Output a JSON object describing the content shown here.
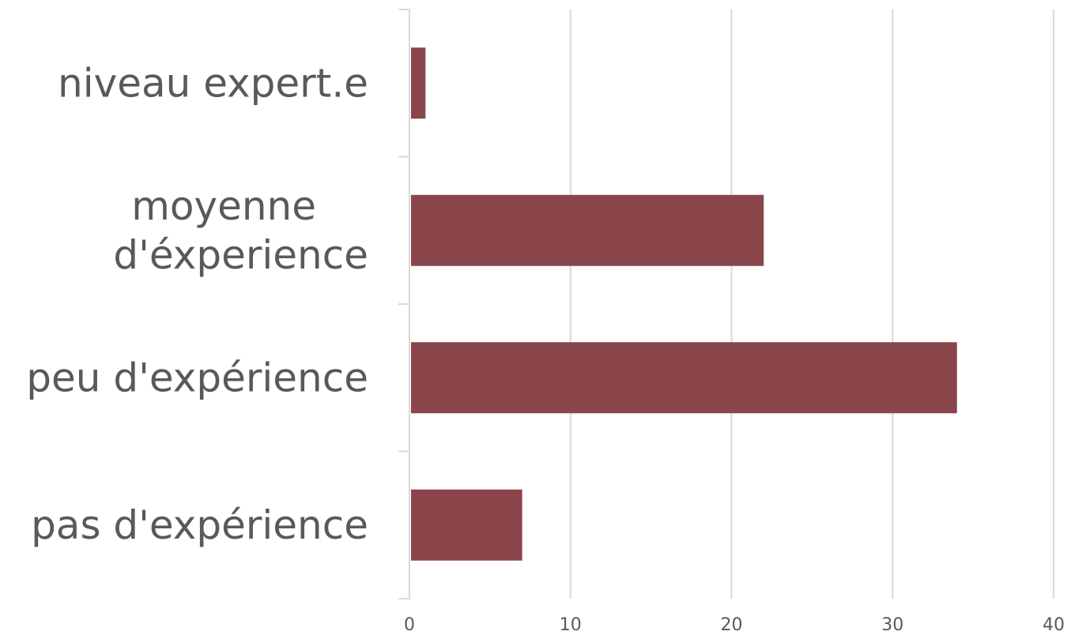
{
  "chart_data": {
    "type": "bar",
    "orientation": "horizontal",
    "categories": [
      "niveau expert.e",
      "moyenne d'éxperience",
      "peu d'expérience",
      "pas d'expérience"
    ],
    "category_lines": [
      [
        "niveau expert.e"
      ],
      [
        "moyenne",
        "d'éxperience"
      ],
      [
        "peu d'expérience"
      ],
      [
        "pas d'expérience"
      ]
    ],
    "values": [
      1,
      22,
      34,
      7
    ],
    "xlim": [
      0,
      40
    ],
    "xticks": [
      0,
      10,
      20,
      30,
      40
    ],
    "title": "",
    "xlabel": "",
    "ylabel": "",
    "grid": true,
    "legend": "none",
    "colors": {
      "bar": "#8b464b",
      "grid": "#d9d9d9",
      "text": "#595959"
    }
  }
}
